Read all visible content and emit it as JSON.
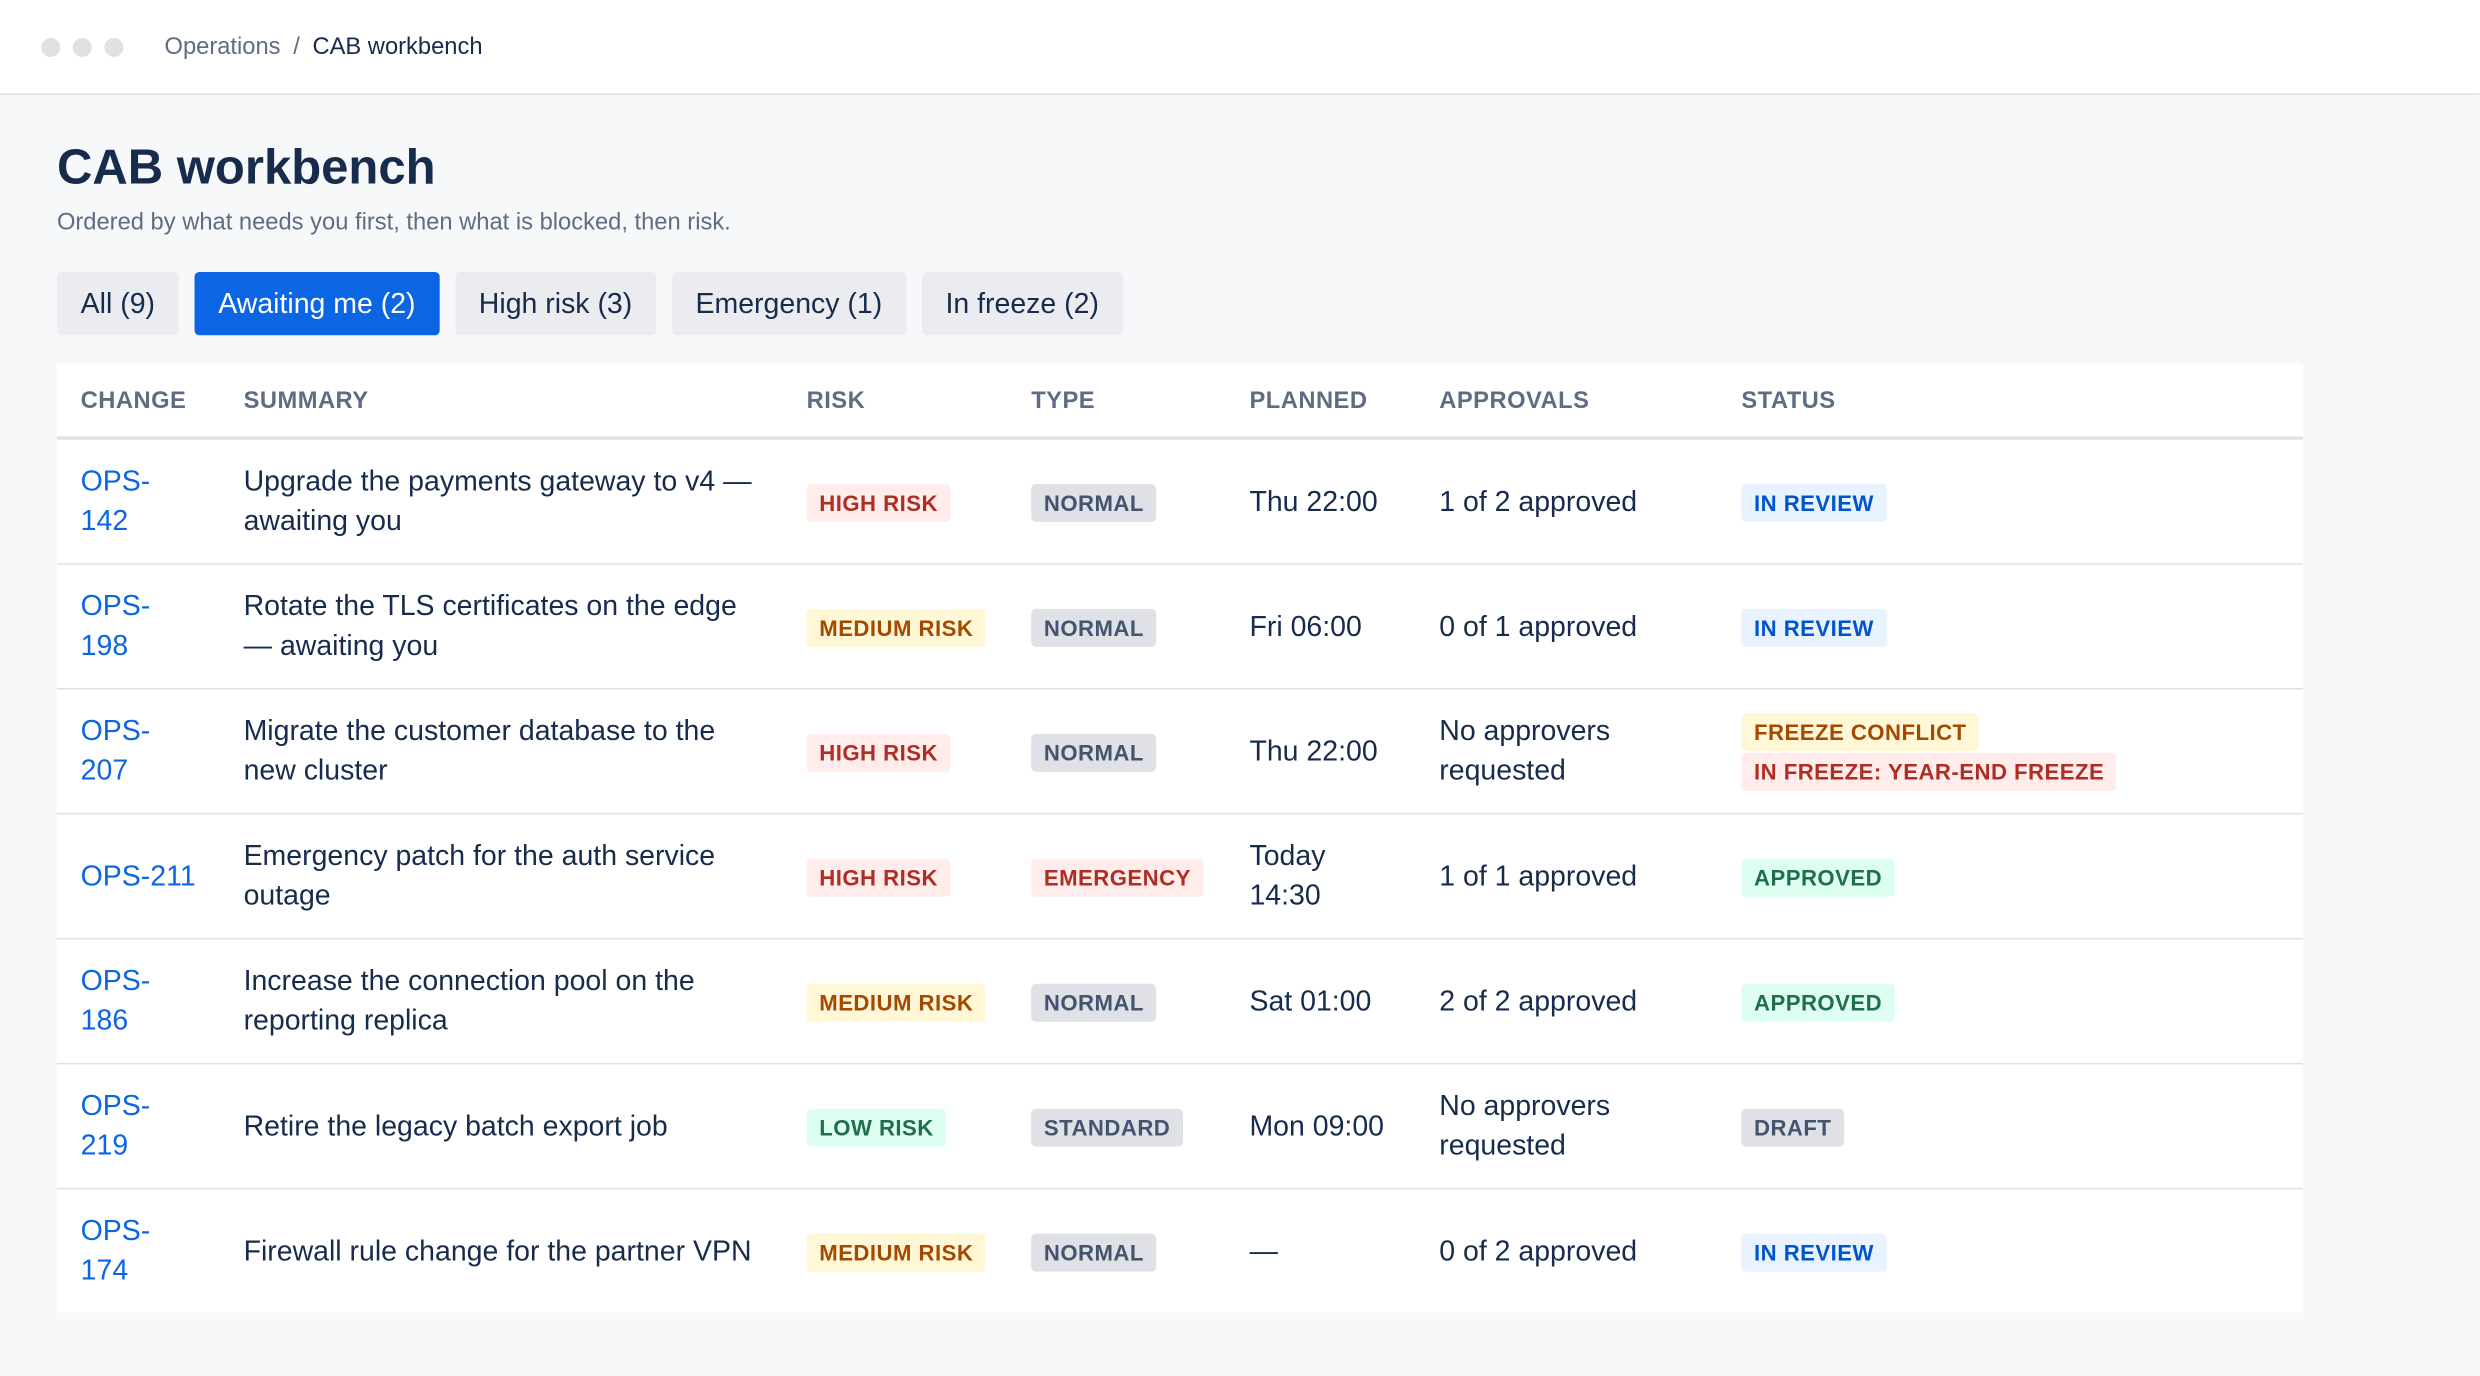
{
  "breadcrumb": {
    "parent": "Operations",
    "separator": "/",
    "current": "CAB workbench"
  },
  "header": {
    "title": "CAB workbench",
    "subtitle": "Ordered by what needs you first, then what is blocked, then risk."
  },
  "tabs": {
    "active": 1,
    "items": [
      "All (9)",
      "Awaiting me (2)",
      "High risk (3)",
      "Emergency (1)",
      "In freeze (2)"
    ]
  },
  "table": {
    "columns": [
      "CHANGE",
      "SUMMARY",
      "RISK",
      "TYPE",
      "PLANNED",
      "APPROVALS",
      "STATUS"
    ],
    "rows": [
      {
        "id": "OPS-142",
        "summary": "Upgrade the payments gateway to v4 — awaiting you",
        "risk": {
          "label": "HIGH RISK",
          "tone": "red"
        },
        "type": {
          "label": "NORMAL",
          "tone": "gray"
        },
        "planned": "Thu 22:00",
        "approvals": "1 of 2 approved",
        "status": [
          {
            "label": "IN REVIEW",
            "tone": "blue"
          }
        ]
      },
      {
        "id": "OPS-198",
        "summary": "Rotate the TLS certificates on the edge — awaiting you",
        "risk": {
          "label": "MEDIUM RISK",
          "tone": "yellow"
        },
        "type": {
          "label": "NORMAL",
          "tone": "gray"
        },
        "planned": "Fri 06:00",
        "approvals": "0 of 1 approved",
        "status": [
          {
            "label": "IN REVIEW",
            "tone": "blue"
          }
        ]
      },
      {
        "id": "OPS-207",
        "summary": "Migrate the customer database to the new cluster",
        "risk": {
          "label": "HIGH RISK",
          "tone": "red"
        },
        "type": {
          "label": "NORMAL",
          "tone": "gray"
        },
        "planned": "Thu 22:00",
        "approvals": "No approvers requested",
        "status": [
          {
            "label": "FREEZE CONFLICT",
            "tone": "yellow"
          },
          {
            "label": "IN FREEZE: YEAR-END FREEZE",
            "tone": "red"
          }
        ]
      },
      {
        "id": "OPS-211",
        "summary": "Emergency patch for the auth service outage",
        "risk": {
          "label": "HIGH RISK",
          "tone": "red"
        },
        "type": {
          "label": "EMERGENCY",
          "tone": "red"
        },
        "planned": "Today 14:30",
        "approvals": "1 of 1 approved",
        "status": [
          {
            "label": "APPROVED",
            "tone": "green"
          }
        ]
      },
      {
        "id": "OPS-186",
        "summary": "Increase the connection pool on the reporting replica",
        "risk": {
          "label": "MEDIUM RISK",
          "tone": "yellow"
        },
        "type": {
          "label": "NORMAL",
          "tone": "gray"
        },
        "planned": "Sat 01:00",
        "approvals": "2 of 2 approved",
        "status": [
          {
            "label": "APPROVED",
            "tone": "green"
          }
        ]
      },
      {
        "id": "OPS-219",
        "summary": "Retire the legacy batch export job",
        "risk": {
          "label": "LOW RISK",
          "tone": "green"
        },
        "type": {
          "label": "STANDARD",
          "tone": "gray"
        },
        "planned": "Mon 09:00",
        "approvals": "No approvers requested",
        "status": [
          {
            "label": "DRAFT",
            "tone": "gray"
          }
        ]
      },
      {
        "id": "OPS-174",
        "summary": "Firewall rule change for the partner VPN",
        "risk": {
          "label": "MEDIUM RISK",
          "tone": "yellow"
        },
        "type": {
          "label": "NORMAL",
          "tone": "gray"
        },
        "planned": "—",
        "approvals": "0 of 2 approved",
        "status": [
          {
            "label": "IN REVIEW",
            "tone": "blue"
          }
        ]
      }
    ]
  }
}
